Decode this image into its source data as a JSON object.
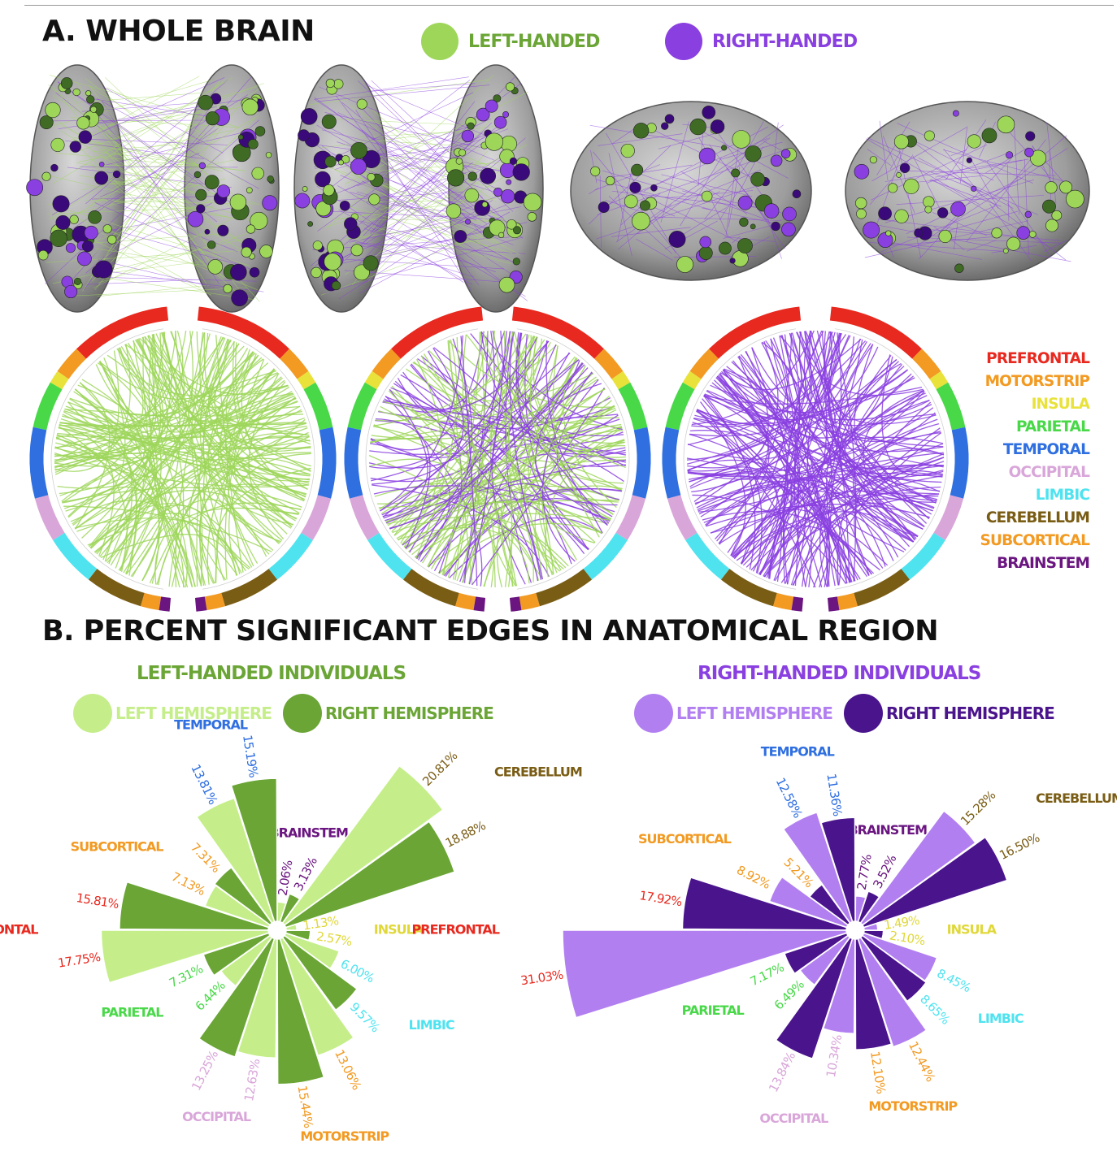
{
  "title_a": "A. WHOLE BRAIN",
  "title_b": "B. PERCENT SIGNIFICANT EDGES IN ANATOMICAL REGION",
  "group_legend": [
    {
      "label": "LEFT-HANDED",
      "color": "#9ed65a"
    },
    {
      "label": "RIGHT-HANDED",
      "color": "#8a3fe0"
    }
  ],
  "region_legend": [
    {
      "label": "PREFRONTAL",
      "color": "#e8291f"
    },
    {
      "label": "MOTORSTRIP",
      "color": "#f29a22"
    },
    {
      "label": "INSULA",
      "color": "#e8e23a"
    },
    {
      "label": "PARIETAL",
      "color": "#48d848"
    },
    {
      "label": "TEMPORAL",
      "color": "#2f6fe0"
    },
    {
      "label": "OCCIPITAL",
      "color": "#d9a6d9"
    },
    {
      "label": "LIMBIC",
      "color": "#4fe3f0"
    },
    {
      "label": "CEREBELLUM",
      "color": "#7a5d15"
    },
    {
      "label": "SUBCORTICAL",
      "color": "#f29a22"
    },
    {
      "label": "BRAINSTEM",
      "color": "#6a1580"
    }
  ],
  "chart_data": [
    {
      "type": "polar-bar",
      "title": "LEFT-HANDED INDIVIDUALS",
      "title_color": "#6aa535",
      "legend": [
        {
          "name": "LEFT HEMISPHERE",
          "color": "#c5ee8a"
        },
        {
          "name": "RIGHT HEMISPHERE",
          "color": "#6aa535"
        }
      ],
      "max_value": 20.81,
      "regions": [
        {
          "name": "BRAINSTEM",
          "color": "#6a1580",
          "left": 2.06,
          "right": 3.13,
          "left_label": "2.06%",
          "right_label": "3.13%"
        },
        {
          "name": "CEREBELLUM",
          "color": "#7a5d15",
          "left": 20.81,
          "right": 18.88,
          "left_label": "20.81%",
          "right_label": "18.88%"
        },
        {
          "name": "INSULA",
          "color": "#e0d83a",
          "left": 1.13,
          "right": 2.57,
          "left_label": "1.13%",
          "right_label": "2.57%"
        },
        {
          "name": "LIMBIC",
          "color": "#4fe3f0",
          "left": 6.0,
          "right": 9.57,
          "left_label": "6.00%",
          "right_label": "9.57%"
        },
        {
          "name": "MOTORSTRIP",
          "color": "#f29a22",
          "left": 13.06,
          "right": 15.44,
          "left_label": "13.06%",
          "right_label": "15.44%"
        },
        {
          "name": "OCCIPITAL",
          "color": "#d9a6d9",
          "left": 12.63,
          "right": 13.25,
          "left_label": "12.63%",
          "right_label": "13.25%"
        },
        {
          "name": "PARIETAL",
          "color": "#48d848",
          "left": 6.44,
          "right": 7.31,
          "left_label": "6.44%",
          "right_label": "7.31%"
        },
        {
          "name": "PREFRONTAL",
          "color": "#e8291f",
          "left": 17.75,
          "right": 15.81,
          "left_label": "17.75%",
          "right_label": "15.81%"
        },
        {
          "name": "SUBCORTICAL",
          "color": "#f29a22",
          "left": 7.13,
          "right": 7.31,
          "left_label": "7.13%",
          "right_label": "7.31%"
        },
        {
          "name": "TEMPORAL",
          "color": "#2f6fe0",
          "left": 13.81,
          "right": 15.19,
          "left_label": "13.81%",
          "right_label": "15.19%"
        }
      ]
    },
    {
      "type": "polar-bar",
      "title": "RIGHT-HANDED INDIVIDUALS",
      "title_color": "#8a3fe0",
      "legend": [
        {
          "name": "LEFT HEMISPHERE",
          "color": "#b27ff0"
        },
        {
          "name": "RIGHT HEMISPHERE",
          "color": "#4a148c"
        }
      ],
      "max_value": 31.03,
      "regions": [
        {
          "name": "BRAINSTEM",
          "color": "#6a1580",
          "left": 2.77,
          "right": 3.52,
          "left_label": "2.77%",
          "right_label": "3.52%"
        },
        {
          "name": "CEREBELLUM",
          "color": "#7a5d15",
          "left": 15.28,
          "right": 16.5,
          "left_label": "15.28%",
          "right_label": "16.50%"
        },
        {
          "name": "INSULA",
          "color": "#e0d83a",
          "left": 1.49,
          "right": 2.1,
          "left_label": "1.49%",
          "right_label": "2.10%"
        },
        {
          "name": "LIMBIC",
          "color": "#4fe3f0",
          "left": 8.45,
          "right": 8.65,
          "left_label": "8.45%",
          "right_label": "8.65%"
        },
        {
          "name": "MOTORSTRIP",
          "color": "#f29a22",
          "left": 12.44,
          "right": 12.1,
          "left_label": "12.44%",
          "right_label": "12.10%"
        },
        {
          "name": "OCCIPITAL",
          "color": "#d9a6d9",
          "left": 10.34,
          "right": 13.84,
          "left_label": "10.34%",
          "right_label": "13.84%"
        },
        {
          "name": "PARIETAL",
          "color": "#48d848",
          "left": 6.49,
          "right": 7.17,
          "left_label": "6.49%",
          "right_label": "7.17%"
        },
        {
          "name": "PREFRONTAL",
          "color": "#e8291f",
          "left": 31.03,
          "right": 17.92,
          "left_label": "31.03%",
          "right_label": "17.92%"
        },
        {
          "name": "SUBCORTICAL",
          "color": "#f29a22",
          "left": 8.92,
          "right": 5.21,
          "left_label": "8.92%",
          "right_label": "5.21%"
        },
        {
          "name": "TEMPORAL",
          "color": "#2f6fe0",
          "left": 12.58,
          "right": 11.36,
          "left_label": "12.58%",
          "right_label": "11.36%"
        }
      ]
    }
  ]
}
